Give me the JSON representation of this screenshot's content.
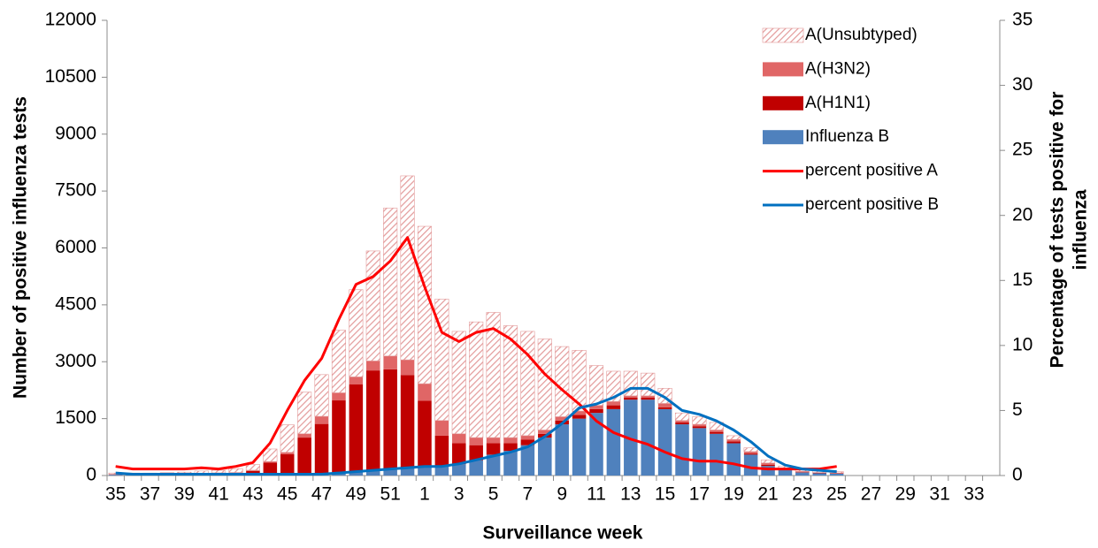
{
  "chart_data": {
    "type": "stacked-bar-line",
    "categories": [
      "35",
      null,
      "37",
      null,
      "39",
      null,
      "41",
      null,
      "43",
      null,
      "45",
      null,
      "47",
      null,
      "49",
      null,
      "51",
      null,
      "1",
      null,
      "3",
      null,
      "5",
      null,
      "7",
      null,
      "9",
      null,
      "11",
      null,
      "13",
      null,
      "15",
      null,
      "17",
      null,
      "19",
      null,
      "21",
      null,
      "23",
      null,
      "25",
      null,
      "27",
      null,
      "29",
      null,
      "31",
      null,
      "33",
      null
    ],
    "series": [
      {
        "name": "Influenza B",
        "color": "#4f81bd",
        "values": [
          20,
          20,
          20,
          20,
          20,
          30,
          30,
          30,
          40,
          40,
          40,
          50,
          60,
          80,
          100,
          120,
          150,
          200,
          220,
          250,
          300,
          400,
          550,
          650,
          800,
          1000,
          1350,
          1500,
          1650,
          1750,
          2000,
          2000,
          1750,
          1350,
          1250,
          1100,
          850,
          550,
          250,
          150,
          80,
          60,
          50,
          null,
          null,
          null,
          null,
          null,
          null,
          null,
          null,
          null
        ]
      },
      {
        "name": "A(H1N1)",
        "color": "#c00000",
        "values": [
          10,
          10,
          10,
          10,
          15,
          20,
          30,
          40,
          80,
          300,
          520,
          950,
          1300,
          1900,
          2300,
          2650,
          2650,
          2450,
          1750,
          800,
          550,
          400,
          300,
          200,
          150,
          100,
          100,
          100,
          100,
          100,
          50,
          50,
          50,
          50,
          50,
          50,
          50,
          30,
          30,
          20,
          10,
          10,
          10,
          null,
          null,
          null,
          null,
          null,
          null,
          null,
          null,
          null
        ]
      },
      {
        "name": "A(H3N2)",
        "color": "#e06666",
        "values": [
          5,
          5,
          5,
          5,
          5,
          10,
          10,
          10,
          20,
          30,
          50,
          100,
          200,
          200,
          200,
          250,
          350,
          400,
          450,
          400,
          250,
          200,
          150,
          150,
          100,
          100,
          100,
          100,
          100,
          100,
          50,
          50,
          100,
          50,
          50,
          50,
          50,
          50,
          50,
          30,
          20,
          10,
          10,
          null,
          null,
          null,
          null,
          null,
          null,
          null,
          null,
          null
        ]
      },
      {
        "name": "A(Unsubtyped)",
        "color": "#e39a9a",
        "hatch": true,
        "values": [
          30,
          30,
          30,
          40,
          50,
          60,
          70,
          100,
          150,
          330,
          730,
          1100,
          1100,
          1650,
          2300,
          2900,
          3900,
          4850,
          4150,
          3200,
          2700,
          3050,
          3300,
          2950,
          2750,
          2400,
          1850,
          1600,
          1050,
          800,
          650,
          600,
          400,
          200,
          200,
          200,
          100,
          100,
          80,
          50,
          40,
          40,
          30,
          null,
          null,
          null,
          null,
          null,
          null,
          null,
          null,
          null
        ]
      },
      {
        "name": "percent positive A",
        "color": "#ff0000",
        "axis": "y2",
        "kind": "line",
        "values": [
          0.7,
          0.5,
          0.5,
          0.5,
          0.5,
          0.6,
          0.5,
          0.7,
          1.0,
          2.5,
          5,
          7.3,
          9,
          12,
          14.7,
          15.3,
          16.5,
          18.3,
          14.5,
          11,
          10.3,
          11,
          11.3,
          10.5,
          9.3,
          7.8,
          6.6,
          5.5,
          4.2,
          3.3,
          2.8,
          2.4,
          1.8,
          1.3,
          1.1,
          1.1,
          0.9,
          0.6,
          0.5,
          0.5,
          0.5,
          0.5,
          0.7,
          null,
          null,
          null,
          null,
          null,
          null,
          null,
          null,
          null
        ]
      },
      {
        "name": "percent positive B",
        "color": "#0070c0",
        "axis": "y2",
        "kind": "line",
        "values": [
          0.2,
          0.1,
          0.1,
          0.1,
          0.1,
          0.1,
          0.1,
          0.1,
          0.1,
          0.1,
          0.1,
          0.1,
          0.1,
          0.2,
          0.3,
          0.4,
          0.5,
          0.6,
          0.7,
          0.7,
          0.9,
          1.2,
          1.5,
          1.8,
          2.2,
          3,
          4,
          5.2,
          5.5,
          6,
          6.7,
          6.7,
          6,
          5,
          4.7,
          4.2,
          3.5,
          2.6,
          1.5,
          0.8,
          0.5,
          0.4,
          0.3,
          null,
          null,
          null,
          null,
          null,
          null,
          null,
          null,
          null
        ]
      }
    ],
    "ylim": [
      0,
      12000
    ],
    "yticks": [
      0,
      1500,
      3000,
      4500,
      6000,
      7500,
      9000,
      10500,
      12000
    ],
    "y2lim": [
      0,
      35
    ],
    "y2ticks": [
      0,
      5,
      10,
      15,
      20,
      25,
      30,
      35
    ],
    "ylabel": "Number of positive influenza tests",
    "y2label": [
      "Percentage of tests positive for",
      "influenza"
    ],
    "xlabel": "Surveillance  week",
    "legend": "top-right"
  }
}
